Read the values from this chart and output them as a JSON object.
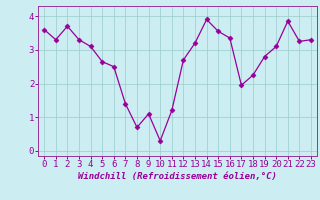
{
  "x": [
    0,
    1,
    2,
    3,
    4,
    5,
    6,
    7,
    8,
    9,
    10,
    11,
    12,
    13,
    14,
    15,
    16,
    17,
    18,
    19,
    20,
    21,
    22,
    23
  ],
  "y": [
    3.6,
    3.3,
    3.7,
    3.3,
    3.1,
    2.65,
    2.5,
    1.4,
    0.7,
    1.1,
    0.3,
    1.2,
    2.7,
    3.2,
    3.9,
    3.55,
    3.35,
    1.95,
    2.25,
    2.8,
    3.1,
    3.85,
    3.25,
    3.3
  ],
  "line_color": "#990099",
  "marker": "D",
  "marker_size": 2.5,
  "xlabel": "Windchill (Refroidissement éolien,°C)",
  "xlim": [
    -0.5,
    23.5
  ],
  "ylim": [
    -0.15,
    4.3
  ],
  "yticks": [
    0,
    1,
    2,
    3,
    4
  ],
  "xticks": [
    0,
    1,
    2,
    3,
    4,
    5,
    6,
    7,
    8,
    9,
    10,
    11,
    12,
    13,
    14,
    15,
    16,
    17,
    18,
    19,
    20,
    21,
    22,
    23
  ],
  "bg_color": "#cceef2",
  "grid_color": "#99cccc",
  "axis_color": "#993399",
  "tick_label_color": "#990099",
  "xlabel_color": "#990099",
  "xlabel_fontsize": 6.5,
  "tick_fontsize": 6.5,
  "linewidth": 0.9
}
